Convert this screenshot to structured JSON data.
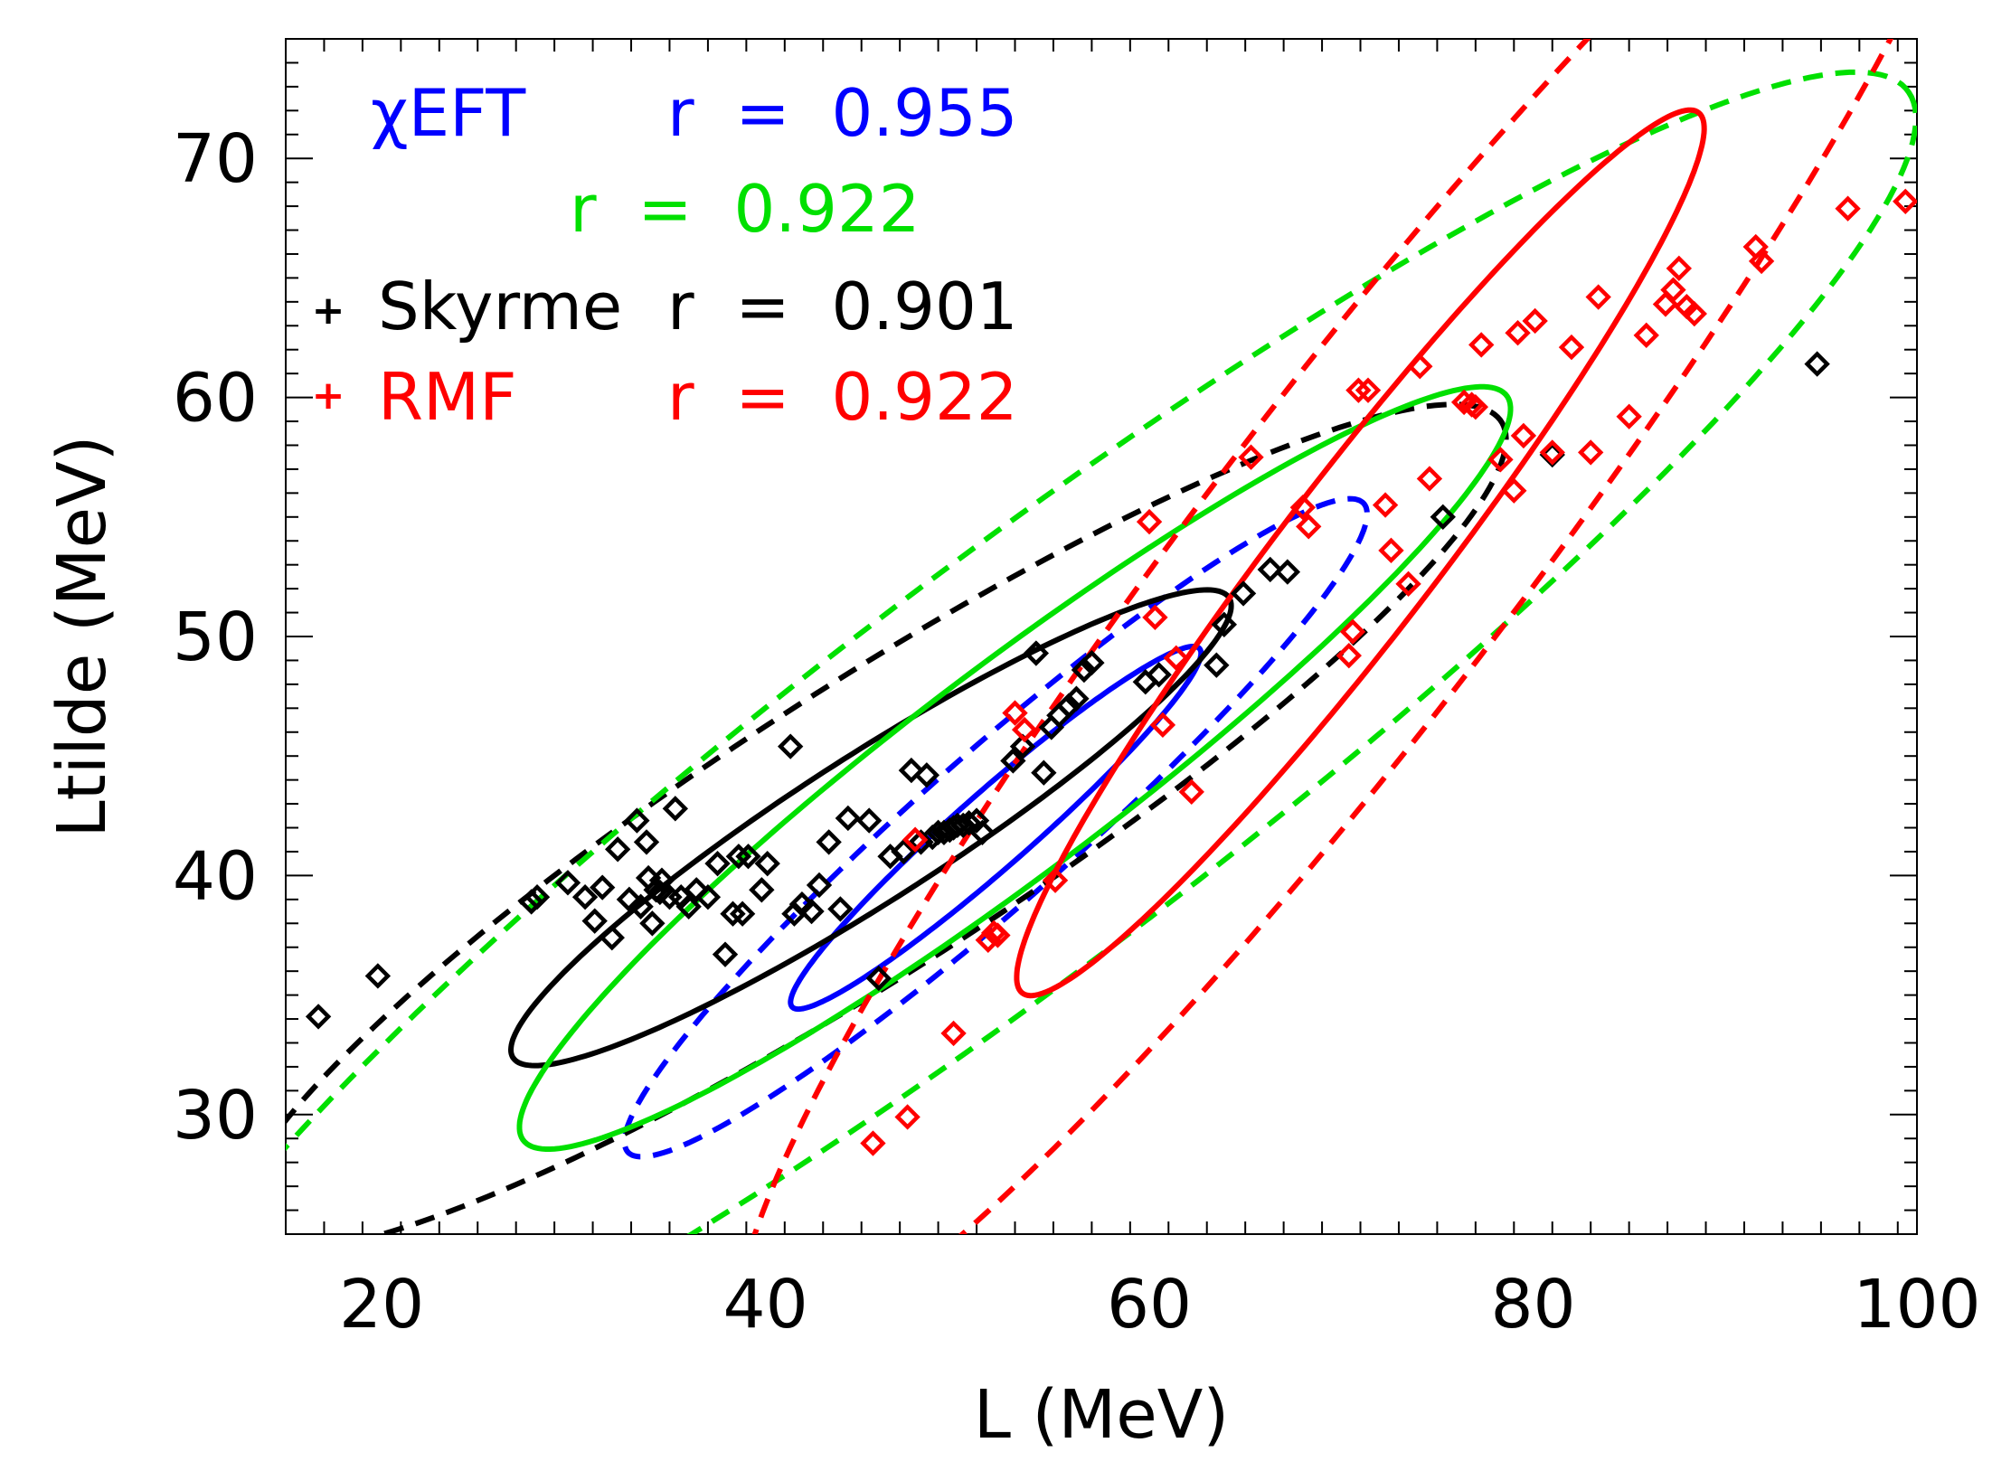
{
  "chart_data": {
    "type": "scatter",
    "title": "",
    "xlabel": "L (MeV)",
    "ylabel": "Ltilde (MeV)",
    "xlim": [
      15,
      100
    ],
    "ylim": [
      25,
      75
    ],
    "x_ticks": [
      20,
      40,
      60,
      80,
      100
    ],
    "y_ticks": [
      30,
      40,
      50,
      60,
      70
    ],
    "x_tick_labels": [
      "20",
      "40",
      "60",
      "80",
      "100"
    ],
    "y_tick_labels": [
      "30",
      "40",
      "50",
      "60",
      "70"
    ],
    "grid": false,
    "legend": [
      {
        "name": "χEFT",
        "marker": "",
        "color": "#0000ff",
        "r_label": "r  =  0.955"
      },
      {
        "name": "",
        "marker": "",
        "color": "#00e000",
        "r_label": "r  =  0.922"
      },
      {
        "name": "Skyrme",
        "marker": "+",
        "color": "#000000",
        "r_label": "r  =  0.901"
      },
      {
        "name": "RMF",
        "marker": "+",
        "color": "#ff0000",
        "r_label": "r  =  0.922"
      }
    ],
    "ellipses": [
      {
        "name": "blue-solid",
        "color": "#0000ff",
        "style": "solid",
        "cx": 52,
        "cy": 42,
        "rx": 13.0,
        "ry": 1.7,
        "angle_deg": 35
      },
      {
        "name": "blue-dashed",
        "color": "#0000ff",
        "style": "dashed",
        "cx": 52,
        "cy": 42,
        "rx": 23.5,
        "ry": 3.4,
        "angle_deg": 35
      },
      {
        "name": "black-solid",
        "color": "#000000",
        "style": "solid",
        "cx": 45.5,
        "cy": 42,
        "rx": 21.0,
        "ry": 3.2,
        "angle_deg": 27
      },
      {
        "name": "black-dashed",
        "color": "#000000",
        "style": "dashed",
        "cx": 45.5,
        "cy": 42,
        "rx": 37.0,
        "ry": 6.3,
        "angle_deg": 27
      },
      {
        "name": "green-solid",
        "color": "#00e000",
        "style": "solid",
        "cx": 53,
        "cy": 44.5,
        "rx": 30.0,
        "ry": 4.6,
        "angle_deg": 31
      },
      {
        "name": "green-dashed",
        "color": "#00e000",
        "style": "dashed",
        "cx": 53,
        "cy": 44.5,
        "rx": 54.5,
        "ry": 9.0,
        "angle_deg": 31
      },
      {
        "name": "red-solid",
        "color": "#ff0000",
        "style": "solid",
        "cx": 71,
        "cy": 53.5,
        "rx": 25.5,
        "ry": 3.7,
        "angle_deg": 46
      },
      {
        "name": "red-dashed",
        "color": "#ff0000",
        "style": "dashed",
        "cx": 71,
        "cy": 53.5,
        "rx": 46.0,
        "ry": 7.5,
        "angle_deg": 46
      }
    ],
    "series": [
      {
        "name": "Skyrme",
        "color": "#000000",
        "marker": "diamond",
        "x": [
          16.7,
          19.8,
          27.8,
          28.1,
          29.7,
          30.6,
          31.1,
          31.5,
          32.0,
          32.3,
          32.9,
          33.3,
          33.5,
          33.8,
          33.9,
          34.1,
          34.3,
          34.5,
          34.6,
          35.0,
          35.3,
          35.6,
          36.0,
          36.4,
          37.0,
          37.5,
          37.9,
          38.3,
          38.6,
          38.8,
          39.1,
          39.8,
          40.1,
          41.3,
          41.5,
          41.9,
          42.4,
          42.8,
          43.3,
          43.9,
          44.3,
          45.4,
          45.9,
          46.5,
          47.2,
          47.6,
          48.1,
          48.4,
          48.7,
          49.0,
          49.3,
          49.6,
          49.8,
          50.0,
          50.3,
          50.6,
          51.0,
          51.3,
          52.9,
          53.4,
          54.1,
          54.5,
          54.9,
          55.3,
          55.8,
          56.2,
          56.6,
          57.0,
          59.8,
          60.5,
          63.5,
          63.9,
          64.9,
          66.3,
          67.2,
          75.3,
          81.0,
          94.8
        ],
        "y": [
          34.1,
          35.8,
          38.9,
          39.1,
          39.7,
          39.1,
          38.1,
          39.5,
          37.4,
          41.1,
          39.0,
          42.3,
          38.7,
          41.4,
          39.9,
          38.0,
          39.4,
          39.3,
          39.8,
          39.1,
          42.8,
          39.1,
          38.7,
          39.4,
          39.1,
          40.5,
          36.7,
          38.4,
          40.8,
          38.4,
          40.8,
          39.4,
          40.5,
          45.4,
          38.4,
          38.8,
          38.5,
          39.6,
          41.4,
          38.6,
          42.4,
          42.3,
          35.7,
          40.8,
          41.0,
          44.4,
          41.4,
          44.2,
          41.6,
          41.8,
          41.8,
          41.9,
          42.0,
          42.1,
          42.1,
          42.2,
          42.3,
          41.8,
          44.8,
          45.4,
          49.3,
          44.3,
          46.2,
          46.7,
          47.1,
          47.4,
          48.6,
          48.9,
          48.1,
          48.4,
          48.8,
          50.5,
          51.8,
          52.8,
          52.7,
          55.0,
          57.6,
          61.4
        ]
      },
      {
        "name": "RMF",
        "color": "#ff0000",
        "marker": "diamond",
        "x": [
          45.6,
          47.4,
          47.8,
          49.8,
          51.6,
          51.9,
          52.1,
          53.0,
          53.5,
          55.1,
          60.0,
          60.3,
          60.7,
          61.4,
          62.2,
          65.3,
          68.0,
          68.3,
          70.4,
          70.6,
          70.9,
          71.4,
          72.3,
          72.6,
          73.5,
          74.1,
          74.6,
          76.4,
          76.8,
          77.0,
          77.3,
          78.3,
          79.0,
          79.2,
          79.5,
          80.1,
          81.0,
          82.0,
          83.0,
          83.4,
          85.0,
          85.9,
          86.9,
          87.3,
          87.6,
          88.0,
          88.4,
          91.6,
          91.9,
          96.4,
          99.4
        ],
        "y": [
          28.8,
          29.9,
          41.5,
          33.4,
          37.3,
          37.6,
          37.5,
          46.8,
          46.1,
          39.8,
          54.8,
          50.8,
          46.3,
          49.1,
          43.5,
          57.5,
          55.4,
          54.6,
          49.2,
          50.2,
          60.3,
          60.3,
          55.5,
          53.6,
          52.2,
          61.3,
          56.6,
          59.8,
          59.7,
          59.6,
          62.2,
          57.4,
          56.1,
          62.7,
          58.4,
          63.2,
          57.7,
          62.1,
          57.7,
          64.2,
          59.2,
          62.6,
          63.9,
          64.5,
          65.4,
          63.8,
          63.5,
          66.3,
          65.7,
          67.9,
          68.2
        ]
      }
    ]
  }
}
